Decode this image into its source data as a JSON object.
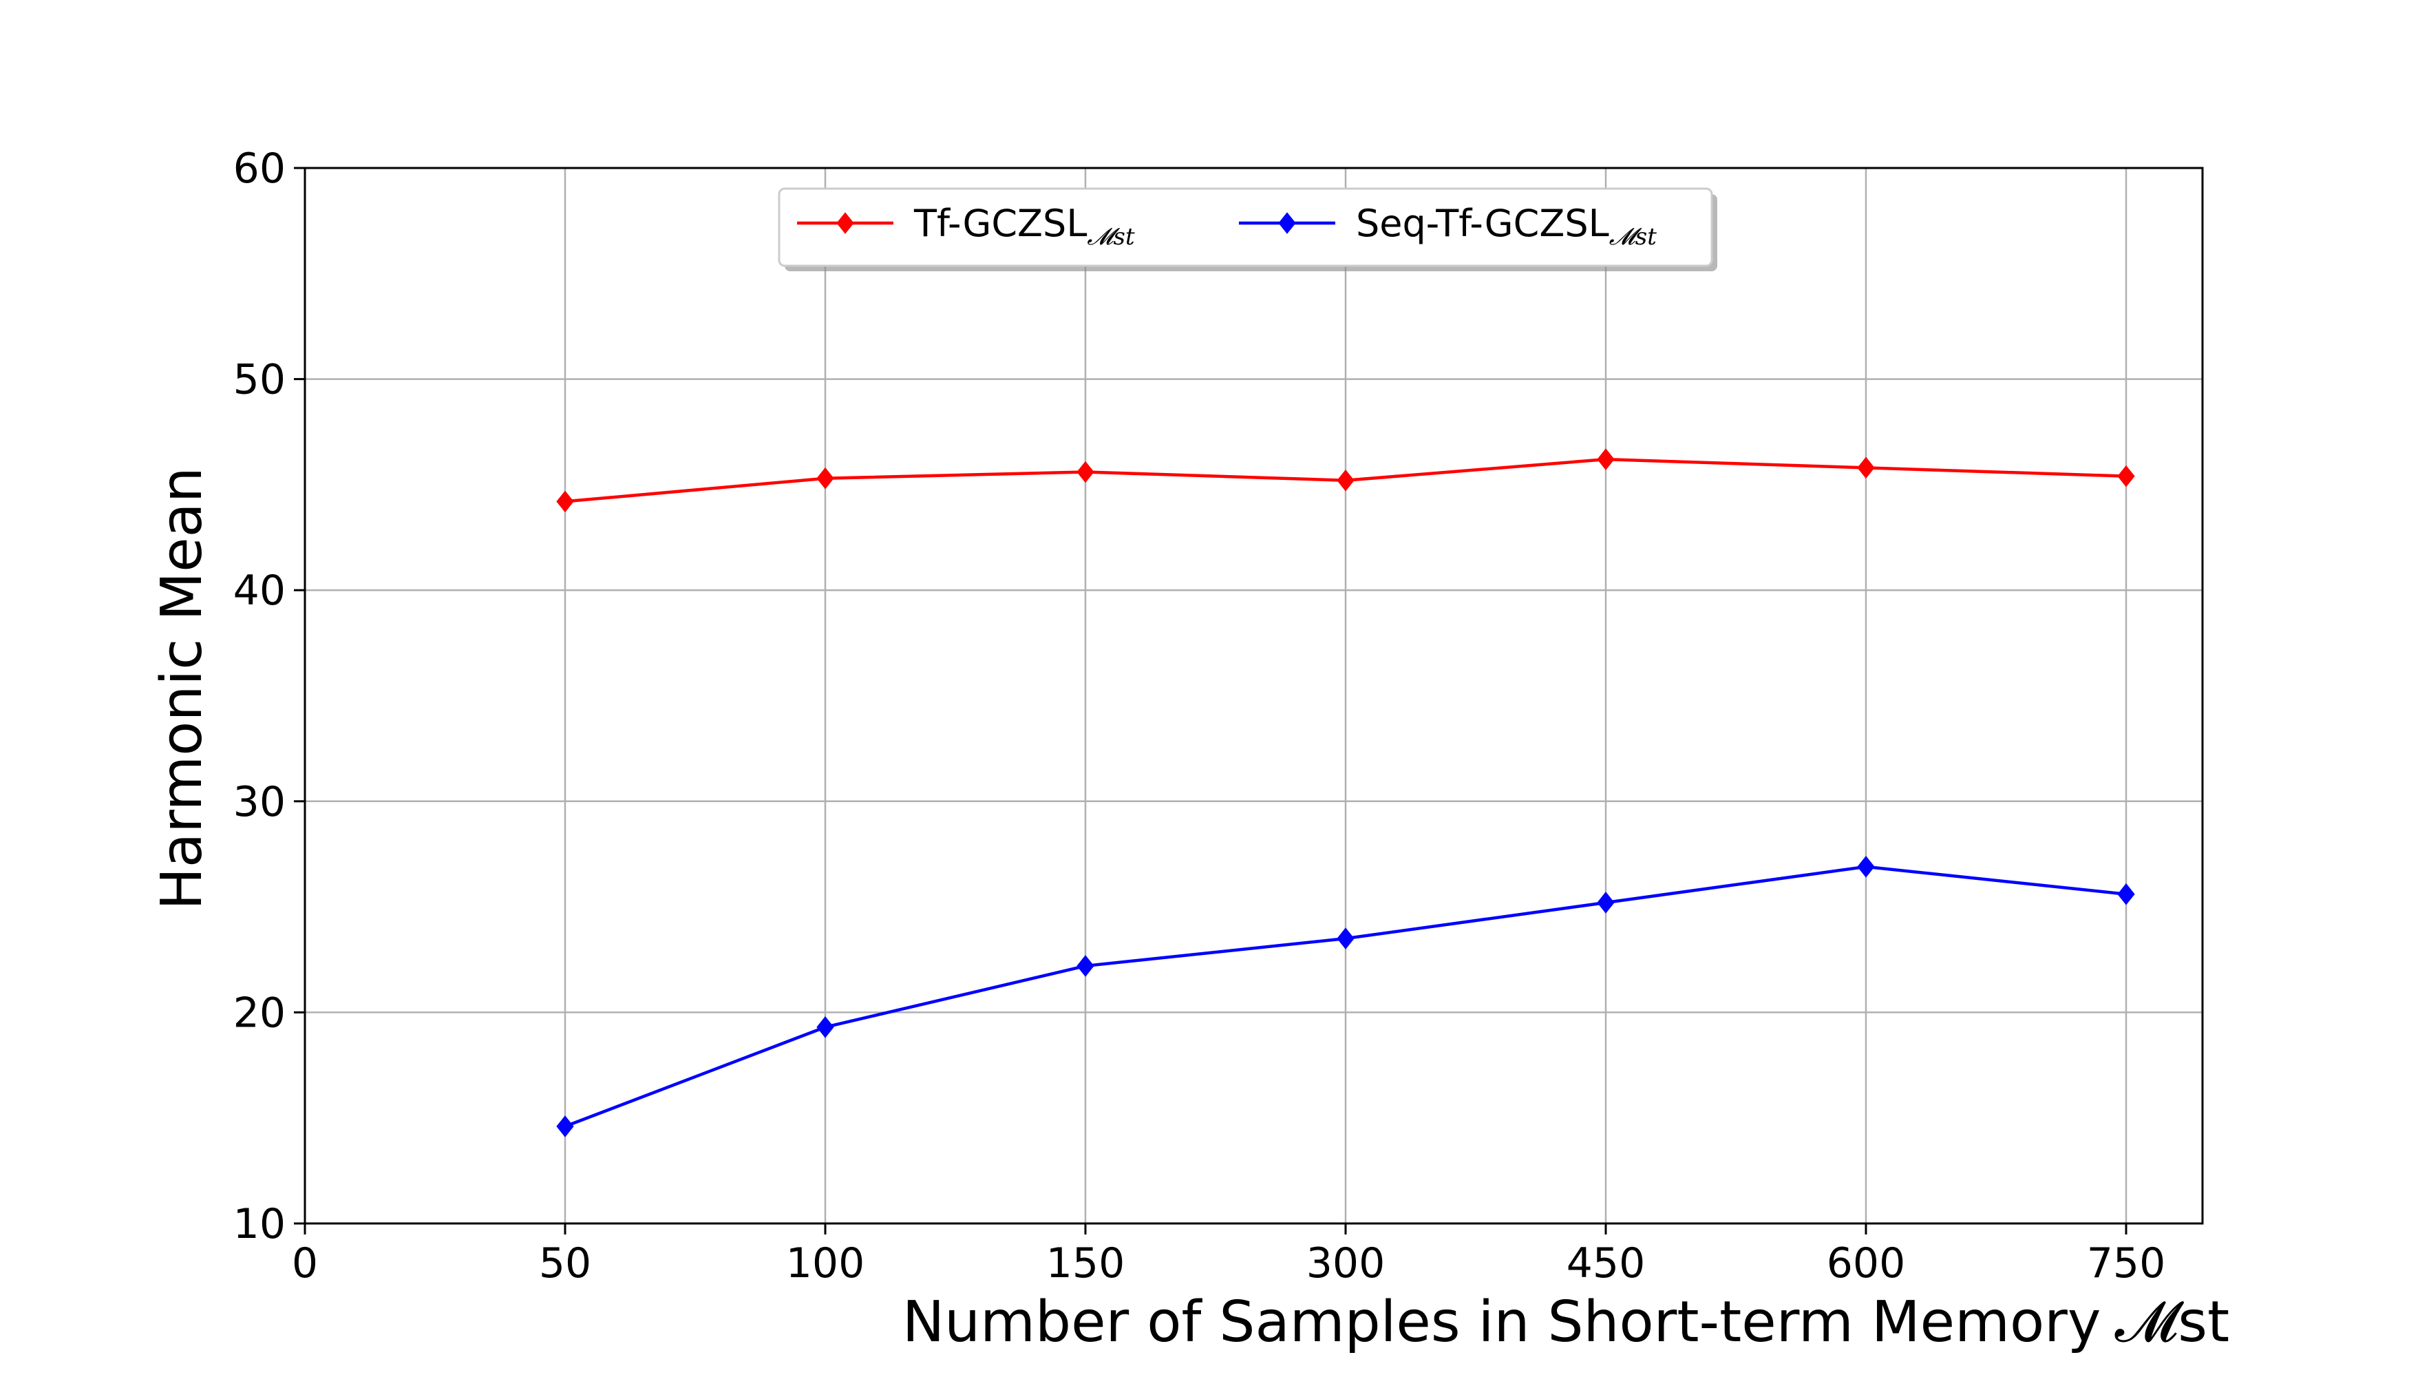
{
  "chart_data": {
    "type": "line",
    "categories": [
      "0",
      "50",
      "100",
      "150",
      "300",
      "450",
      "600",
      "750"
    ],
    "series": [
      {
        "name": "Tf-GCZSL",
        "name_subscript": "𝓜st",
        "color": "#ff0000",
        "marker": "diamond",
        "values": [
          null,
          44.2,
          45.3,
          45.6,
          45.2,
          46.2,
          45.8,
          45.4
        ]
      },
      {
        "name": "Seq-Tf-GCZSL",
        "name_subscript": "𝓜st",
        "color": "#0000ff",
        "marker": "diamond",
        "values": [
          null,
          14.6,
          19.3,
          22.2,
          23.5,
          25.2,
          26.9,
          25.6
        ]
      }
    ],
    "xlabel": "Number of Samples in Short-term Memory",
    "xlabel_math": "𝓜st",
    "ylabel": "Harmonic Mean",
    "ylim": [
      10,
      60
    ],
    "yticks": [
      "10",
      "20",
      "30",
      "40",
      "50",
      "60"
    ],
    "grid": true,
    "legend": "upper center"
  }
}
